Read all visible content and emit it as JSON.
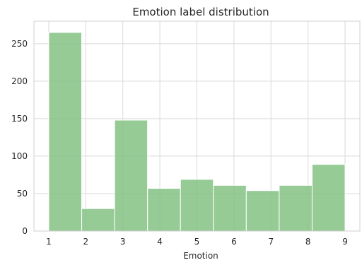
{
  "chart_data": {
    "type": "bar",
    "title": "Emotion label distribution",
    "xlabel": "Emotion",
    "ylabel": "",
    "xlim": [
      0.6,
      9.4
    ],
    "ylim": [
      0,
      280
    ],
    "xticks": [
      1,
      2,
      3,
      4,
      5,
      6,
      7,
      8,
      9
    ],
    "yticks": [
      0,
      50,
      100,
      150,
      200,
      250
    ],
    "grid": true,
    "bar_color": "#7fc07f",
    "bins": [
      {
        "x_start": 1.0,
        "x_end": 1.889,
        "value": 265
      },
      {
        "x_start": 1.889,
        "x_end": 2.778,
        "value": 30
      },
      {
        "x_start": 2.778,
        "x_end": 3.667,
        "value": 148
      },
      {
        "x_start": 3.667,
        "x_end": 4.556,
        "value": 57
      },
      {
        "x_start": 4.556,
        "x_end": 5.444,
        "value": 69
      },
      {
        "x_start": 5.444,
        "x_end": 6.333,
        "value": 61
      },
      {
        "x_start": 6.333,
        "x_end": 7.222,
        "value": 54
      },
      {
        "x_start": 7.222,
        "x_end": 8.111,
        "value": 61
      },
      {
        "x_start": 8.111,
        "x_end": 9.0,
        "value": 89
      }
    ]
  }
}
